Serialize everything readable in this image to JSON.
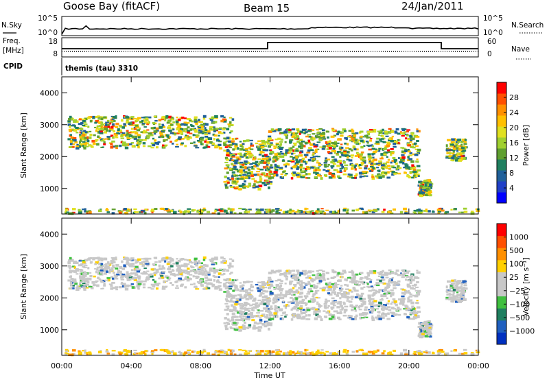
{
  "header": {
    "station": "Goose Bay (fitACF)",
    "beam": "Beam 15",
    "date": "24/Jan/2011"
  },
  "noise_panel": {
    "left_label": "N.Sky",
    "right_label": "N.Search",
    "left_ticks": [
      "10^5",
      "10^0"
    ],
    "right_ticks": [
      "10^5",
      "10^0"
    ]
  },
  "freq_panel": {
    "left_label_line1": "Freq.",
    "left_label_line2": "[MHz]",
    "right_label": "Nave",
    "left_ticks": [
      "18",
      "8"
    ],
    "right_ticks": [
      "60",
      "0"
    ]
  },
  "cpid": {
    "label": "CPID",
    "value": "themis (tau) 3310"
  },
  "chart_data": [
    {
      "type": "heatmap",
      "name": "power",
      "ylabel": "Slant Range [km]",
      "ylim": [
        200,
        4500
      ],
      "y_ticks": [
        "4000",
        "3000",
        "2000",
        "1000"
      ],
      "xlim": [
        0,
        24
      ],
      "colorbar_label": "Power [dB]",
      "colorbar_ticks": [
        "28",
        "24",
        "20",
        "16",
        "12",
        "8",
        "4"
      ],
      "colorbar_colors": [
        "#0000ff",
        "#2040c8",
        "#20609a",
        "#208060",
        "#60a030",
        "#a0d030",
        "#e0e020",
        "#ffc000",
        "#ff9000",
        "#ff5000",
        "#ff0000"
      ],
      "echo_regions": [
        {
          "t_start": 0.3,
          "t_end": 9.8,
          "r_start": 2300,
          "r_end": 3300
        },
        {
          "t_start": 9.3,
          "t_end": 12.0,
          "r_start": 1000,
          "r_end": 2600
        },
        {
          "t_start": 11.8,
          "t_end": 20.5,
          "r_start": 1350,
          "r_end": 2900
        },
        {
          "t_start": 20.5,
          "t_end": 21.2,
          "r_start": 800,
          "r_end": 1300
        },
        {
          "t_start": 22.1,
          "t_end": 23.2,
          "r_start": 1900,
          "r_end": 2600
        },
        {
          "t_start": 0.0,
          "t_end": 24.0,
          "r_start": 250,
          "r_end": 400
        }
      ]
    },
    {
      "type": "heatmap",
      "name": "velocity",
      "ylabel": "Slant Range [km]",
      "ylim": [
        200,
        4500
      ],
      "y_ticks": [
        "4000",
        "3000",
        "2000",
        "1000"
      ],
      "xlim": [
        0,
        24
      ],
      "xlabel": "Time UT",
      "x_ticks": [
        "00:00",
        "04:00",
        "08:00",
        "12:00",
        "16:00",
        "20:00",
        "00:00"
      ],
      "colorbar_label": "Velocity [m s⁻¹]",
      "colorbar_ticks": [
        "1000",
        "500",
        "100",
        "25",
        "−25",
        "−100",
        "−500",
        "−1000"
      ],
      "colorbar_colors": [
        "#0030c0",
        "#2060c0",
        "#208060",
        "#40c040",
        "#c8c8c8",
        "#c8c8c8",
        "#ffd000",
        "#ff9000",
        "#ff5000",
        "#ff0000"
      ],
      "dominant_value_ms": 0
    }
  ]
}
